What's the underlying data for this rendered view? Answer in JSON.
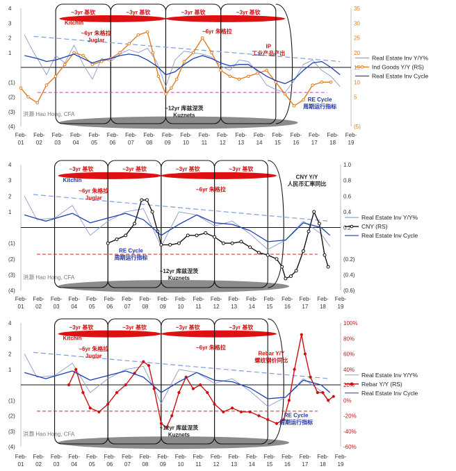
{
  "colors": {
    "inv_yy": "#8899cc",
    "inv_cycle": "#1a3fb0",
    "trend": "#7f9be6",
    "ind_goods": "#e07b1f",
    "cny": "#111111",
    "rebar": "#cc1111",
    "juglar_oval": "#dd1111",
    "kuznets_oval": "#777777",
    "dash_magenta": "#dd33dd",
    "dash_red": "#dd2222"
  },
  "x_tick_labels": [
    "Feb-\n01",
    "Feb-\n02",
    "Feb-\n03",
    "Feb-\n04",
    "Feb-\n05",
    "Feb-\n06",
    "Feb-\n07",
    "Feb-\n08",
    "Feb-\n09",
    "Feb-\n10",
    "Feb-\n11",
    "Feb-\n12",
    "Feb-\n13",
    "Feb-\n14",
    "Feb-\n15",
    "Feb-\n16",
    "Feb-\n17",
    "Feb-\n18",
    "Feb-\n19"
  ],
  "panel1": {
    "left_ticks": [
      "4",
      "3",
      "2",
      "1",
      "",
      "(1)",
      "(2)",
      "(3)",
      "(4)"
    ],
    "right_ticks": [
      "35",
      "30",
      "25",
      "20",
      "15",
      "10",
      "5",
      "",
      "(5)"
    ],
    "annotations": {
      "kitchin": "Kitchin",
      "juglar": "~6yr 朱格拉\nJuglar",
      "cyc3_1": "~3yr 基钦",
      "cyc3_2": "~3yr 基钦",
      "cyc3_3": "~3yr 基钦",
      "cyc3_4": "~3yr 基钦",
      "juglar_right": "~6yr 朱格拉",
      "ip": "IP\n工业产品产出",
      "kuznets": "~12yr 库兹涅茨\nKuznets",
      "re_cycle": "RE Cycle\n周期运行指标",
      "watermark": "洪灏 Hao Hong, CFA"
    },
    "legend": [
      "Real Estate Inv Y/Y%",
      "Ind Goods Y/Y (RS)",
      "Real Estate Inv Cycle"
    ]
  },
  "panel2": {
    "left_ticks": [
      "4",
      "3",
      "2",
      "1",
      "",
      "(1)",
      "(2)",
      "(3)",
      "(4)"
    ],
    "right_ticks": [
      "1.0",
      "0.8",
      "0.6",
      "0.4",
      "0.2",
      "",
      "(0.2)",
      "(0.4)",
      "(0.6)"
    ],
    "annotations": {
      "kitchin": "Kitchin",
      "juglar": "~6yr 朱格拉\nJuglar",
      "cyc3_1": "~3yr 基钦",
      "cyc3_2": "~3yr 基钦",
      "cyc3_3": "~3yr 基钦",
      "cyc3_4": "~3yr 基钦",
      "juglar_right": "~6yr 朱格拉",
      "cny": "CNY Y/Y\n人民币汇率同比",
      "kuznets": "~12yr 库兹涅茨\nKuznets",
      "re_cycle": "RE Cycle\n周期运行指标",
      "watermark": "洪灏 Hao Hong, CFA"
    },
    "legend": [
      "Real Estate Inv Y/Y%",
      "CNY (RS)",
      "Real Estate Inv Cycle"
    ]
  },
  "panel3": {
    "left_ticks": [
      "4",
      "3",
      "2",
      "1",
      "",
      "(1)",
      "(2)",
      "(3)",
      "(4)"
    ],
    "right_ticks": [
      "100%",
      "80%",
      "60%",
      "40%",
      "20%",
      "0%",
      "-20%",
      "-40%",
      "-60%"
    ],
    "annotations": {
      "kitchin": "Kitchin",
      "juglar": "~6yr 朱格拉\nJuglar",
      "cyc3_1": "~3yr 基钦",
      "cyc3_2": "~3yr 基钦",
      "cyc3_3": "~3yr 基钦",
      "cyc3_4": "~3yr 基钦",
      "juglar_right": "~6yr 朱格拉",
      "rebar": "Rebar Y/Y\n螺纹钢价同比",
      "kuznets": "~12yr 库兹涅茨\nKuznets",
      "re_cycle": "RE Cycle\n周期运行指标",
      "watermark": "洪灏 Hao Hong, CFA"
    },
    "legend": [
      "Real Estate Inv Y/Y%",
      "Rebar Y/Y (RS)",
      "Real Estate Inv Cycle"
    ]
  },
  "chart_data": [
    {
      "type": "line",
      "x_range": [
        2001.1,
        2019.1
      ],
      "y_left_range": [
        -4,
        4
      ],
      "y_right_range": [
        -5,
        35
      ],
      "series": [
        {
          "name": "Real Estate Inv Y/Y%",
          "axis": "left",
          "x": [
            2001.3,
            2001.8,
            2002.1,
            2002.5,
            2003.0,
            2003.5,
            2004.0,
            2004.5,
            2005.0,
            2005.5,
            2006.0,
            2006.5,
            2007.0,
            2007.5,
            2008.0,
            2008.5,
            2009.0,
            2009.5,
            2010.0,
            2010.5,
            2011.0,
            2011.5,
            2012.0,
            2012.5,
            2013.0,
            2013.5,
            2014.0,
            2014.5,
            2015.0,
            2015.5,
            2016.0,
            2016.5,
            2017.0,
            2017.5,
            2018.0,
            2018.5
          ],
          "y": [
            2.2,
            1.0,
            0.4,
            -0.5,
            0.8,
            0.3,
            1.5,
            0.2,
            -0.8,
            0.6,
            0.4,
            0.9,
            1.2,
            1.0,
            1.3,
            0.4,
            -1.3,
            0.5,
            1.1,
            1.0,
            0.9,
            0.7,
            0.1,
            -0.2,
            0.5,
            0.4,
            -0.3,
            -1.2,
            -1.5,
            -1.7,
            -0.9,
            0.2,
            0.5,
            -0.2,
            -0.6,
            -1.3
          ]
        },
        {
          "name": "Ind Goods Y/Y (RS)",
          "axis": "right",
          "x": [
            2001.1,
            2001.5,
            2002.0,
            2002.5,
            2003.0,
            2003.5,
            2004.0,
            2004.5,
            2005.0,
            2005.5,
            2006.0,
            2006.5,
            2007.0,
            2007.5,
            2008.0,
            2008.3,
            2008.6,
            2009.0,
            2009.3,
            2009.6,
            2010.0,
            2010.5,
            2011.0,
            2011.5,
            2012.0,
            2012.5,
            2013.0,
            2013.5,
            2014.0,
            2014.5,
            2015.0,
            2015.5,
            2016.0,
            2016.5,
            2017.0,
            2017.5,
            2018.0
          ],
          "y": [
            8,
            5,
            3,
            9,
            12,
            16,
            20,
            19,
            16,
            17,
            18,
            20,
            23,
            26,
            27,
            20,
            12,
            6,
            8,
            11,
            17,
            20,
            25,
            20,
            14,
            12,
            11,
            12,
            13,
            14,
            10,
            6,
            2,
            4,
            9,
            10,
            10
          ]
        },
        {
          "name": "Real Estate Inv Cycle",
          "axis": "left",
          "x": [
            2001.3,
            2002.0,
            2002.5,
            2003.0,
            2003.5,
            2004.0,
            2004.5,
            2005.0,
            2005.5,
            2006.0,
            2006.5,
            2007.0,
            2007.5,
            2008.0,
            2008.5,
            2009.0,
            2009.5,
            2010.0,
            2010.5,
            2011.0,
            2011.5,
            2012.0,
            2012.5,
            2013.0,
            2013.5,
            2014.0,
            2014.5,
            2015.0,
            2015.5,
            2016.0,
            2016.5,
            2017.0,
            2017.5,
            2018.0,
            2018.5
          ],
          "y": [
            0.8,
            0.6,
            0.4,
            0.5,
            0.7,
            0.9,
            0.6,
            0.3,
            0.5,
            0.6,
            0.8,
            0.9,
            0.8,
            0.5,
            0.1,
            -0.5,
            -0.3,
            0.2,
            0.6,
            0.8,
            0.6,
            0.3,
            0.1,
            0.2,
            0.2,
            -0.2,
            -0.6,
            -0.9,
            -1.1,
            -0.8,
            -0.2,
            0.3,
            0.4,
            0.0,
            -0.5
          ]
        }
      ]
    },
    {
      "type": "line",
      "x_range": [
        2001.1,
        2019.1
      ],
      "y_left_range": [
        -4,
        4
      ],
      "y_right_range": [
        -0.6,
        1.0
      ],
      "series": [
        {
          "name": "Real Estate Inv Y/Y%",
          "axis": "left",
          "x": [
            2001.3,
            2002.0,
            2003.0,
            2004.0,
            2005.0,
            2006.0,
            2007.0,
            2008.0,
            2009.0,
            2010.0,
            2011.0,
            2012.0,
            2013.0,
            2014.0,
            2015.0,
            2016.0,
            2017.0,
            2018.0,
            2018.5
          ],
          "y": [
            2.0,
            0.5,
            0.6,
            1.4,
            -0.5,
            0.4,
            1.0,
            1.2,
            -1.2,
            1.0,
            0.8,
            0.1,
            0.4,
            -0.4,
            -1.4,
            -0.8,
            0.4,
            -0.4,
            -1.2
          ]
        },
        {
          "name": "CNY (RS)",
          "axis": "right",
          "x": [
            2006.0,
            2006.5,
            2007.0,
            2007.5,
            2007.9,
            2008.2,
            2008.5,
            2008.8,
            2009.0,
            2009.5,
            2010.0,
            2010.5,
            2011.0,
            2011.5,
            2012.0,
            2012.5,
            2013.0,
            2013.5,
            2014.0,
            2014.5,
            2015.0,
            2015.5,
            2015.8,
            2016.0,
            2016.3,
            2016.6,
            2017.0,
            2017.3,
            2017.6,
            2017.9,
            2018.2,
            2018.4
          ],
          "y": [
            0.0,
            0.05,
            0.1,
            0.25,
            0.55,
            0.55,
            0.4,
            0.15,
            -0.02,
            -0.02,
            0.0,
            0.1,
            0.1,
            0.13,
            0.08,
            0.0,
            0.0,
            0.02,
            -0.05,
            -0.12,
            -0.15,
            -0.2,
            -0.3,
            -0.45,
            -0.42,
            -0.35,
            -0.1,
            0.15,
            0.4,
            0.25,
            -0.15,
            -0.3
          ]
        },
        {
          "name": "Real Estate Inv Cycle",
          "axis": "left",
          "x": [
            2001.3,
            2002.5,
            2004.0,
            2005.0,
            2006.0,
            2007.0,
            2008.0,
            2009.0,
            2010.0,
            2011.0,
            2012.0,
            2013.0,
            2014.0,
            2015.0,
            2016.0,
            2017.0,
            2018.0,
            2018.5
          ],
          "y": [
            0.8,
            0.4,
            0.9,
            0.3,
            0.6,
            0.9,
            0.5,
            -0.5,
            0.2,
            0.8,
            0.3,
            0.2,
            -0.2,
            -0.9,
            -0.8,
            0.3,
            0.0,
            -0.5
          ]
        }
      ]
    },
    {
      "type": "line",
      "x_range": [
        2001.1,
        2019.1
      ],
      "y_left_range": [
        -4,
        4
      ],
      "y_right_range": [
        -60,
        100
      ],
      "series": [
        {
          "name": "Real Estate Inv Y/Y%",
          "axis": "left",
          "x": [
            2001.3,
            2002.0,
            2003.0,
            2004.0,
            2005.0,
            2006.0,
            2007.0,
            2008.0,
            2009.0,
            2010.0,
            2011.0,
            2012.0,
            2013.0,
            2014.0,
            2015.0,
            2016.0,
            2017.0,
            2018.0,
            2018.5
          ],
          "y": [
            2.0,
            0.5,
            0.6,
            1.4,
            -0.5,
            0.4,
            1.0,
            1.2,
            -1.2,
            1.0,
            0.8,
            0.1,
            0.4,
            -0.4,
            -1.4,
            -0.8,
            0.4,
            -0.4,
            -1.2
          ]
        },
        {
          "name": "Rebar Y/Y (RS)",
          "axis": "right",
          "x": [
            2003.8,
            2004.2,
            2004.6,
            2005.0,
            2005.5,
            2006.0,
            2006.5,
            2007.0,
            2007.5,
            2008.0,
            2008.3,
            2008.6,
            2009.0,
            2009.3,
            2009.6,
            2010.0,
            2010.4,
            2010.8,
            2011.2,
            2011.6,
            2012.0,
            2012.5,
            2013.0,
            2013.5,
            2014.0,
            2014.5,
            2015.0,
            2015.5,
            2015.9,
            2016.2,
            2016.5,
            2016.9,
            2017.1,
            2017.4,
            2017.8,
            2018.1,
            2018.4,
            2018.7
          ],
          "y": [
            20,
            40,
            10,
            -10,
            -15,
            -5,
            10,
            20,
            35,
            50,
            45,
            15,
            -30,
            -35,
            -20,
            10,
            30,
            15,
            20,
            10,
            -5,
            -15,
            -10,
            -15,
            -15,
            -20,
            -25,
            -30,
            -25,
            0,
            40,
            85,
            60,
            30,
            10,
            10,
            0,
            5
          ]
        },
        {
          "name": "Real Estate Inv Cycle",
          "axis": "left",
          "x": [
            2001.3,
            2002.5,
            2004.0,
            2005.0,
            2006.0,
            2007.0,
            2008.0,
            2009.0,
            2010.0,
            2011.0,
            2012.0,
            2013.0,
            2014.0,
            2015.0,
            2016.0,
            2017.0,
            2018.0,
            2018.5
          ],
          "y": [
            0.8,
            0.4,
            0.9,
            0.3,
            0.6,
            0.9,
            0.5,
            -0.5,
            0.2,
            0.8,
            0.3,
            0.2,
            -0.2,
            -0.9,
            -0.8,
            0.3,
            0.0,
            -0.5
          ]
        }
      ]
    }
  ]
}
